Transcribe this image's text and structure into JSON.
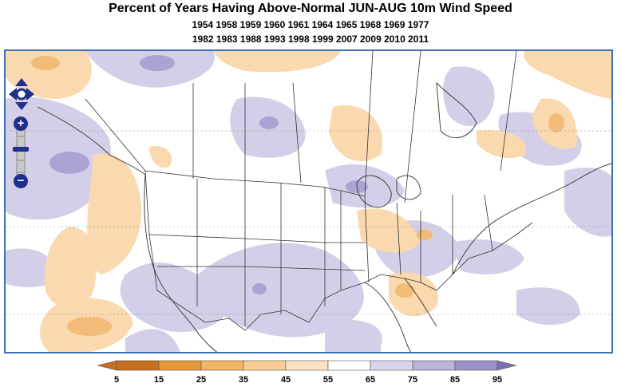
{
  "title": {
    "line1": "Percent of Years Having Above-Normal JUN-AUG 10m Wind Speed",
    "line2": "1954 1958 1959 1960 1961 1964 1965 1968 1969 1977",
    "line3": "1982 1983 1988 1993 1998 1999 2007 2009 2010 2011"
  },
  "legend": {
    "ticks": [
      "5",
      "15",
      "25",
      "35",
      "45",
      "55",
      "65",
      "75",
      "85",
      "95"
    ],
    "colors": [
      "#c86f1e",
      "#e69a3a",
      "#f0b565",
      "#f7cd93",
      "#fbe3c2",
      "#ffffff",
      "#d8d4ea",
      "#bab3da",
      "#9c92c7",
      "#7d6fb0"
    ]
  },
  "map": {
    "above_color": "#cfc8e6",
    "below_color": "#f8d6a8",
    "border_color": "#3a6fb0"
  },
  "controls": {
    "pan": "pan-arrows-icon",
    "zoom_in": "+",
    "zoom_out": "−"
  }
}
